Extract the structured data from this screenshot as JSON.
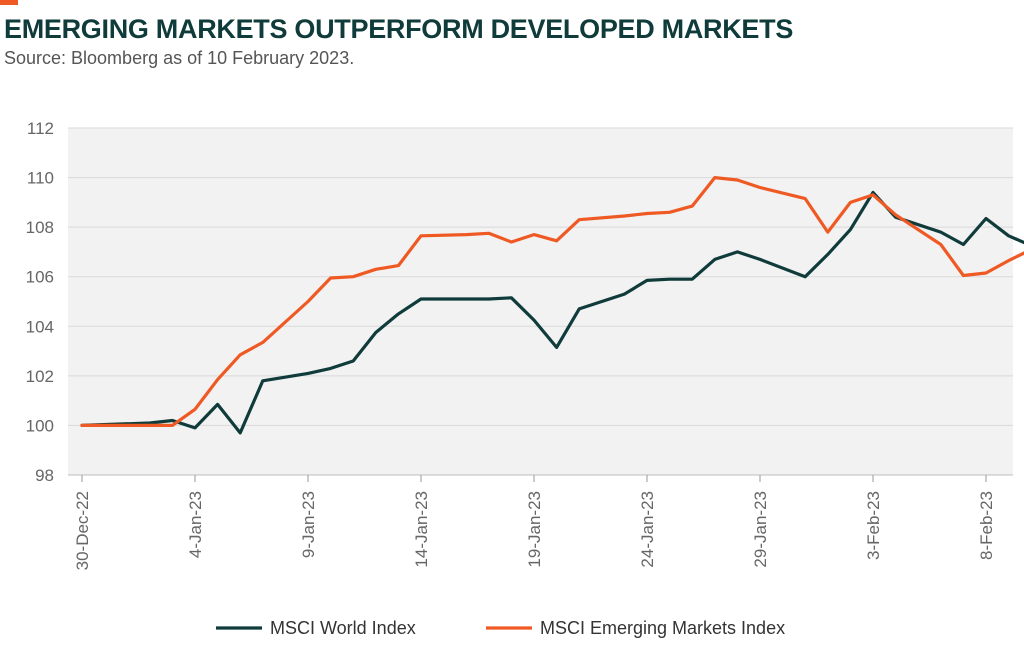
{
  "header": {
    "title": "EMERGING MARKETS OUTPERFORM DEVELOPED MARKETS",
    "subtitle": "Source: Bloomberg as of 10 February 2023."
  },
  "colors": {
    "accent": "#ef5a24",
    "title": "#0f3b3a",
    "plot_background": "#f2f2f2",
    "gridline": "#d9d9d9"
  },
  "chart_data": {
    "type": "line",
    "title": "EMERGING MARKETS OUTPERFORM DEVELOPED MARKETS",
    "subtitle": "Source: Bloomberg as of 10 February 2023.",
    "xlabel": "",
    "ylabel": "",
    "ylim": [
      98,
      112
    ],
    "yticks": [
      98,
      100,
      102,
      104,
      106,
      108,
      110,
      112
    ],
    "xlim": [
      "30-Dec-22",
      "10-Feb-23"
    ],
    "xticks": [
      "30-Dec-22",
      "4-Jan-23",
      "9-Jan-23",
      "14-Jan-23",
      "19-Jan-23",
      "24-Jan-23",
      "29-Jan-23",
      "3-Feb-23",
      "8-Feb-23"
    ],
    "grid": true,
    "legend": "bottom",
    "series": [
      {
        "name": "MSCI World Index",
        "color": "#0f3b3a",
        "points": [
          [
            "30-Dec-22",
            100.0
          ],
          [
            "2-Jan-23",
            100.1
          ],
          [
            "3-Jan-23",
            100.2
          ],
          [
            "4-Jan-23",
            99.9
          ],
          [
            "5-Jan-23",
            100.85
          ],
          [
            "6-Jan-23",
            99.7
          ],
          [
            "7-Jan-23",
            101.8
          ],
          [
            "9-Jan-23",
            102.1
          ],
          [
            "10-Jan-23",
            102.3
          ],
          [
            "11-Jan-23",
            102.6
          ],
          [
            "12-Jan-23",
            103.75
          ],
          [
            "13-Jan-23",
            104.5
          ],
          [
            "14-Jan-23",
            105.1
          ],
          [
            "16-Jan-23",
            105.1
          ],
          [
            "17-Jan-23",
            105.1
          ],
          [
            "18-Jan-23",
            105.15
          ],
          [
            "19-Jan-23",
            104.25
          ],
          [
            "20-Jan-23",
            103.15
          ],
          [
            "21-Jan-23",
            104.7
          ],
          [
            "23-Jan-23",
            105.3
          ],
          [
            "24-Jan-23",
            105.85
          ],
          [
            "25-Jan-23",
            105.9
          ],
          [
            "26-Jan-23",
            105.9
          ],
          [
            "27-Jan-23",
            106.7
          ],
          [
            "28-Jan-23",
            107.0
          ],
          [
            "29-Jan-23",
            106.7
          ],
          [
            "31-Jan-23",
            106.0
          ],
          [
            "1-Feb-23",
            106.9
          ],
          [
            "2-Feb-23",
            107.9
          ],
          [
            "3-Feb-23",
            109.4
          ],
          [
            "4-Feb-23",
            108.4
          ],
          [
            "6-Feb-23",
            107.8
          ],
          [
            "7-Feb-23",
            107.3
          ],
          [
            "8-Feb-23",
            108.35
          ],
          [
            "9-Feb-23",
            107.65
          ],
          [
            "10-Feb-23",
            107.25
          ]
        ]
      },
      {
        "name": "MSCI Emerging Markets Index",
        "color": "#ef5a24",
        "points": [
          [
            "30-Dec-22",
            100.0
          ],
          [
            "2-Jan-23",
            100.0
          ],
          [
            "3-Jan-23",
            100.0
          ],
          [
            "4-Jan-23",
            100.65
          ],
          [
            "5-Jan-23",
            101.85
          ],
          [
            "6-Jan-23",
            102.85
          ],
          [
            "7-Jan-23",
            103.35
          ],
          [
            "9-Jan-23",
            105.0
          ],
          [
            "10-Jan-23",
            105.95
          ],
          [
            "11-Jan-23",
            106.0
          ],
          [
            "12-Jan-23",
            106.3
          ],
          [
            "13-Jan-23",
            106.45
          ],
          [
            "14-Jan-23",
            107.65
          ],
          [
            "16-Jan-23",
            107.7
          ],
          [
            "17-Jan-23",
            107.75
          ],
          [
            "18-Jan-23",
            107.4
          ],
          [
            "19-Jan-23",
            107.7
          ],
          [
            "20-Jan-23",
            107.45
          ],
          [
            "21-Jan-23",
            108.3
          ],
          [
            "23-Jan-23",
            108.45
          ],
          [
            "24-Jan-23",
            108.55
          ],
          [
            "25-Jan-23",
            108.6
          ],
          [
            "26-Jan-23",
            108.85
          ],
          [
            "27-Jan-23",
            110.0
          ],
          [
            "28-Jan-23",
            109.9
          ],
          [
            "29-Jan-23",
            109.6
          ],
          [
            "31-Jan-23",
            109.15
          ],
          [
            "1-Feb-23",
            107.8
          ],
          [
            "2-Feb-23",
            109.0
          ],
          [
            "3-Feb-23",
            109.3
          ],
          [
            "4-Feb-23",
            108.5
          ],
          [
            "6-Feb-23",
            107.3
          ],
          [
            "7-Feb-23",
            106.05
          ],
          [
            "8-Feb-23",
            106.15
          ],
          [
            "9-Feb-23",
            106.65
          ],
          [
            "10-Feb-23",
            107.1
          ]
        ]
      }
    ]
  }
}
